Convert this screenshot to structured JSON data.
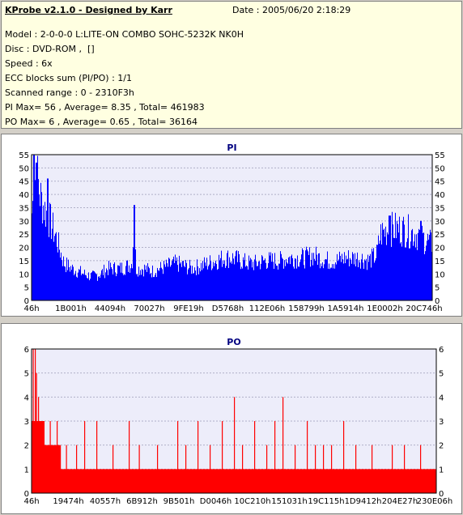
{
  "header": {
    "title": "KProbe v2.1.0 - Designed by Karr",
    "date": "Date : 2005/06/20 2:18:29",
    "lines": [
      "Model : 2-0-0-0 L:LITE-ON COMBO SOHC-5232K NK0H",
      "Disc : DVD-ROM ,  []",
      "Speed : 6x",
      "ECC blocks sum (PI/PO) : 1/1",
      "Scanned range : 0 - 2310F3h",
      "PI Max= 56 , Average= 8.35 , Total= 461983",
      "PO Max= 6 , Average= 0.65 , Total= 36164"
    ]
  },
  "colors": {
    "pi": "#0000ff",
    "po": "#ff0000",
    "plot_bg": "#ededfa",
    "grid": "#b0b0c8",
    "axis": "#000000",
    "title": "#000080"
  },
  "chart_data": [
    {
      "type": "area",
      "title": "PI",
      "xlabel": "",
      "ylabel": "",
      "ylim": [
        0,
        55
      ],
      "yticks": [
        0,
        5,
        10,
        15,
        20,
        25,
        30,
        35,
        40,
        45,
        50,
        55
      ],
      "x_range": [
        "46h",
        "2310F3h"
      ],
      "x_ticks": [
        "46h",
        "1B001h",
        "44094h",
        "70027h",
        "9FE19h",
        "D5768h",
        "112E06h",
        "158799h",
        "1A5914h",
        "1E0002h",
        "20C746h"
      ],
      "grid": true,
      "series": [
        {
          "color": "#0000ff",
          "x_fraction": [
            0.0,
            0.01,
            0.02,
            0.03,
            0.045,
            0.06,
            0.08,
            0.1,
            0.13,
            0.15,
            0.17,
            0.19,
            0.2,
            0.22,
            0.24,
            0.25,
            0.255,
            0.26,
            0.28,
            0.3,
            0.32,
            0.34,
            0.36,
            0.38,
            0.4,
            0.42,
            0.44,
            0.46,
            0.48,
            0.5,
            0.52,
            0.54,
            0.56,
            0.58,
            0.6,
            0.62,
            0.64,
            0.66,
            0.68,
            0.7,
            0.72,
            0.74,
            0.76,
            0.78,
            0.8,
            0.82,
            0.84,
            0.85,
            0.86,
            0.87,
            0.88,
            0.9,
            0.92,
            0.94,
            0.96,
            0.98,
            1.0
          ],
          "values": [
            33,
            50,
            40,
            35,
            30,
            24,
            14,
            12,
            10,
            9,
            10,
            12,
            12,
            12,
            13,
            14,
            29,
            12,
            12,
            11,
            12,
            13,
            14,
            13,
            12,
            13,
            14,
            15,
            16,
            16,
            15,
            14,
            14,
            15,
            15,
            15,
            16,
            16,
            16,
            17,
            16,
            15,
            15,
            16,
            16,
            16,
            15,
            16,
            17,
            25,
            26,
            27,
            27,
            26,
            25,
            23,
            21
          ],
          "peaks": [
            [
              0.005,
              55
            ],
            [
              0.012,
              52
            ],
            [
              0.04,
              46
            ],
            [
              0.255,
              36
            ],
            [
              0.893,
              32
            ],
            [
              0.97,
              30
            ]
          ]
        }
      ]
    },
    {
      "type": "bar",
      "title": "PO",
      "xlabel": "",
      "ylabel": "",
      "ylim": [
        0,
        6
      ],
      "yticks": [
        0,
        1,
        2,
        3,
        4,
        5,
        6
      ],
      "x_range": [
        "46h",
        "230E06h"
      ],
      "x_ticks": [
        "46h",
        "19474h",
        "40557h",
        "6B912h",
        "9B501h",
        "D0046h",
        "10C210h",
        "151031h",
        "19C115h",
        "1D9412h",
        "204E27h",
        "230E06h"
      ],
      "grid": true,
      "series": [
        {
          "color": "#ff0000",
          "baseline_fraction": [
            0.0,
            0.01,
            0.02,
            0.04,
            0.06,
            0.08,
            0.1,
            0.2,
            0.3,
            0.4,
            0.5,
            0.6,
            0.7,
            0.8,
            0.9,
            1.0
          ],
          "baseline_values": [
            3,
            3,
            3,
            2,
            2,
            1,
            1,
            1,
            1,
            1,
            1,
            1,
            1,
            1,
            1,
            1
          ],
          "spikes": [
            [
              0.003,
              6
            ],
            [
              0.008,
              6
            ],
            [
              0.011,
              5
            ],
            [
              0.016,
              4
            ],
            [
              0.018,
              3
            ],
            [
              0.024,
              3
            ],
            [
              0.032,
              2
            ],
            [
              0.045,
              3
            ],
            [
              0.062,
              3
            ],
            [
              0.07,
              2
            ],
            [
              0.085,
              2
            ],
            [
              0.11,
              2
            ],
            [
              0.13,
              3
            ],
            [
              0.16,
              3
            ],
            [
              0.2,
              2
            ],
            [
              0.24,
              3
            ],
            [
              0.265,
              2
            ],
            [
              0.31,
              2
            ],
            [
              0.36,
              3
            ],
            [
              0.38,
              2
            ],
            [
              0.41,
              3
            ],
            [
              0.44,
              2
            ],
            [
              0.47,
              3
            ],
            [
              0.5,
              4
            ],
            [
              0.52,
              2
            ],
            [
              0.55,
              3
            ],
            [
              0.58,
              2
            ],
            [
              0.6,
              3
            ],
            [
              0.62,
              4
            ],
            [
              0.65,
              2
            ],
            [
              0.68,
              3
            ],
            [
              0.7,
              2
            ],
            [
              0.72,
              2
            ],
            [
              0.74,
              2
            ],
            [
              0.77,
              3
            ],
            [
              0.8,
              2
            ],
            [
              0.84,
              2
            ],
            [
              0.89,
              2
            ],
            [
              0.92,
              2
            ],
            [
              0.96,
              2
            ],
            [
              0.99,
              1
            ]
          ]
        }
      ]
    }
  ]
}
